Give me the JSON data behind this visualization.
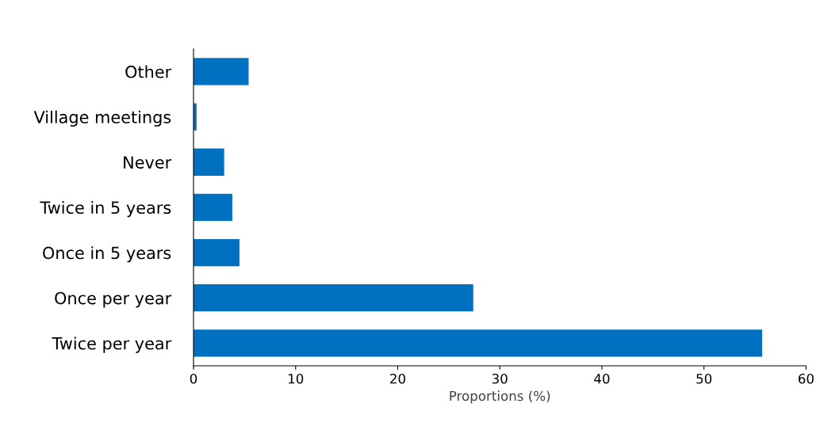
{
  "chart_data": {
    "type": "bar",
    "orientation": "horizontal",
    "xlabel": "Proportions (%)",
    "categories": [
      "Other",
      "Village meetings",
      "Never",
      "Twice in 5 years",
      "Once in 5 years",
      "Once per year",
      "Twice per year"
    ],
    "values": [
      5.4,
      0.3,
      3.0,
      3.8,
      4.5,
      27.4,
      55.7
    ],
    "color": "#0070c0",
    "xlim": [
      0,
      60
    ],
    "xticks": [
      0,
      10,
      20,
      30,
      40,
      50,
      60
    ],
    "grid": false
  }
}
